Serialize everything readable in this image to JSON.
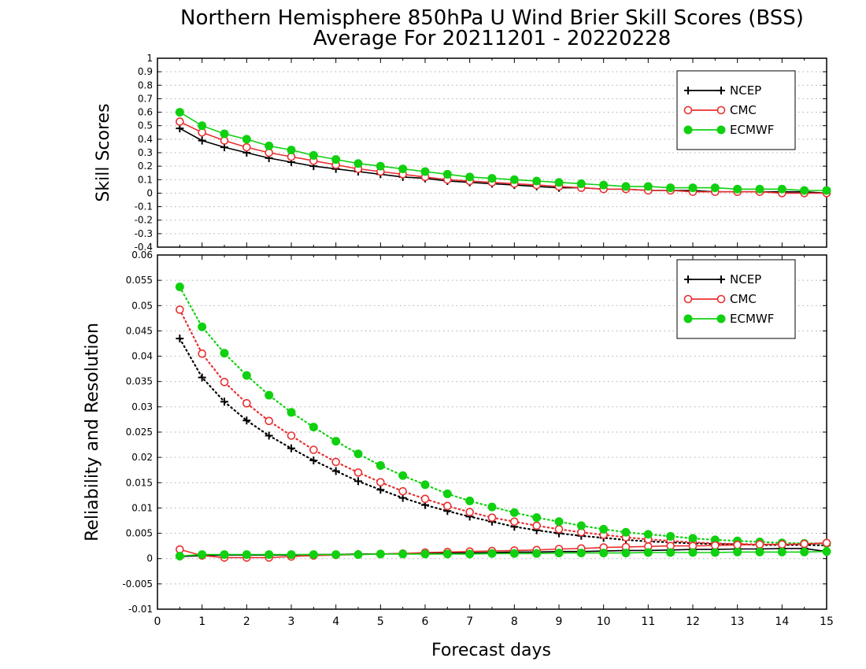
{
  "title_line1": "Northern Hemisphere 850hPa U Wind Brier Skill Scores (BSS)",
  "title_line2": "Average For 20211201 - 20220228",
  "colors": {
    "NCEP": "#000000",
    "CMC": "#e83030",
    "ECMWF": "#10d010",
    "grid": "#aaaaaa"
  },
  "chart_data": [
    {
      "type": "line",
      "ylabel": "Skill Scores",
      "ylim": [
        -0.4,
        1
      ],
      "yticks": [
        "1",
        "0.9",
        "0.8",
        "0.7",
        "0.6",
        "0.5",
        "0.4",
        "0.3",
        "0.2",
        "0.1",
        "0",
        "-0.1",
        "-0.2",
        "-0.3",
        "-0.4"
      ],
      "xlim": [
        0,
        15
      ],
      "grid": true,
      "legend": "top-right",
      "legend_entries": [
        "NCEP",
        "CMC",
        "ECMWF"
      ],
      "x": [
        0.5,
        1,
        1.5,
        2,
        2.5,
        3,
        3.5,
        4,
        4.5,
        5,
        5.5,
        6,
        6.5,
        7,
        7.5,
        8,
        8.5,
        9,
        9.5,
        10,
        10.5,
        11,
        11.5,
        12,
        12.5,
        13,
        13.5,
        14,
        14.5,
        15
      ],
      "series": [
        {
          "name": "NCEP",
          "marker": "plus",
          "style": "solid",
          "values": [
            0.48,
            0.39,
            0.34,
            0.3,
            0.26,
            0.23,
            0.2,
            0.18,
            0.16,
            0.14,
            0.12,
            0.11,
            0.09,
            0.08,
            0.07,
            0.06,
            0.05,
            0.04,
            0.04,
            0.03,
            0.03,
            0.02,
            0.02,
            0.02,
            0.01,
            0.01,
            0.01,
            0.01,
            0.01,
            0.0
          ]
        },
        {
          "name": "CMC",
          "marker": "open-circle",
          "style": "solid",
          "values": [
            0.53,
            0.45,
            0.39,
            0.34,
            0.3,
            0.27,
            0.24,
            0.21,
            0.18,
            0.16,
            0.14,
            0.12,
            0.1,
            0.09,
            0.08,
            0.07,
            0.06,
            0.05,
            0.04,
            0.03,
            0.03,
            0.02,
            0.02,
            0.01,
            0.01,
            0.01,
            0.01,
            0.0,
            0.0,
            0.0
          ]
        },
        {
          "name": "ECMWF",
          "marker": "filled-circle",
          "style": "solid",
          "values": [
            0.6,
            0.5,
            0.44,
            0.4,
            0.35,
            0.32,
            0.28,
            0.25,
            0.22,
            0.2,
            0.18,
            0.16,
            0.14,
            0.12,
            0.11,
            0.1,
            0.09,
            0.08,
            0.07,
            0.06,
            0.05,
            0.05,
            0.04,
            0.04,
            0.04,
            0.03,
            0.03,
            0.03,
            0.02,
            0.02
          ]
        }
      ]
    },
    {
      "type": "line",
      "ylabel": "Reliability and Resolution",
      "xlabel": "Forecast days",
      "ylim": [
        -0.01,
        0.06
      ],
      "yticks": [
        "0.06",
        "0.055",
        "0.05",
        "0.045",
        "0.04",
        "0.035",
        "0.03",
        "0.025",
        "0.02",
        "0.015",
        "0.01",
        "0.005",
        "0",
        "-0.005",
        "-0.01"
      ],
      "xlim": [
        0,
        15
      ],
      "xticks": [
        "0",
        "1",
        "2",
        "3",
        "4",
        "5",
        "6",
        "7",
        "8",
        "9",
        "10",
        "11",
        "12",
        "13",
        "14",
        "15"
      ],
      "grid": true,
      "legend": "top-right",
      "legend_entries": [
        "NCEP",
        "CMC",
        "ECMWF"
      ],
      "x": [
        0.5,
        1,
        1.5,
        2,
        2.5,
        3,
        3.5,
        4,
        4.5,
        5,
        5.5,
        6,
        6.5,
        7,
        7.5,
        8,
        8.5,
        9,
        9.5,
        10,
        10.5,
        11,
        11.5,
        12,
        12.5,
        13,
        13.5,
        14,
        14.5,
        15
      ],
      "series": [
        {
          "name": "NCEP",
          "marker": "plus",
          "style": "dotted",
          "kind": "resolution",
          "values": [
            0.0435,
            0.0358,
            0.031,
            0.0273,
            0.0243,
            0.0218,
            0.0194,
            0.0173,
            0.0153,
            0.0136,
            0.012,
            0.0106,
            0.0094,
            0.0083,
            0.0073,
            0.0063,
            0.0056,
            0.005,
            0.0045,
            0.0041,
            0.0037,
            0.0034,
            0.0032,
            0.003,
            0.0029,
            0.0028,
            0.0027,
            0.0027,
            0.0027,
            0.0026
          ]
        },
        {
          "name": "CMC",
          "marker": "open-circle",
          "style": "dotted",
          "kind": "resolution",
          "values": [
            0.0492,
            0.0405,
            0.0349,
            0.0307,
            0.0272,
            0.0243,
            0.0215,
            0.0191,
            0.017,
            0.0151,
            0.0133,
            0.0118,
            0.0104,
            0.0092,
            0.0081,
            0.0073,
            0.0065,
            0.0058,
            0.0052,
            0.0047,
            0.0042,
            0.0038,
            0.0035,
            0.0032,
            0.003,
            0.0029,
            0.0028,
            0.0028,
            0.0029,
            0.003
          ]
        },
        {
          "name": "ECMWF",
          "marker": "filled-circle",
          "style": "dotted",
          "kind": "resolution",
          "values": [
            0.0537,
            0.0458,
            0.0406,
            0.0362,
            0.0323,
            0.0289,
            0.026,
            0.0232,
            0.0207,
            0.0184,
            0.0164,
            0.0146,
            0.0128,
            0.0114,
            0.0102,
            0.0091,
            0.0081,
            0.0073,
            0.0065,
            0.0058,
            0.0052,
            0.0048,
            0.0044,
            0.004,
            0.0037,
            0.0035,
            0.0033,
            0.0031,
            0.003,
            0.003
          ]
        },
        {
          "name": "NCEP",
          "marker": "plus",
          "style": "solid",
          "kind": "reliability",
          "values": [
            0.0004,
            0.0006,
            0.0007,
            0.0007,
            0.0007,
            0.0007,
            0.0008,
            0.0008,
            0.0009,
            0.0009,
            0.001,
            0.001,
            0.0011,
            0.0011,
            0.0012,
            0.0013,
            0.0013,
            0.0014,
            0.0014,
            0.0015,
            0.0016,
            0.0016,
            0.0017,
            0.0018,
            0.0018,
            0.0019,
            0.0019,
            0.002,
            0.002,
            0.0014
          ]
        },
        {
          "name": "CMC",
          "marker": "open-circle",
          "style": "solid",
          "kind": "reliability",
          "values": [
            0.0018,
            0.0006,
            0.0002,
            0.0002,
            0.0002,
            0.0004,
            0.0006,
            0.0007,
            0.0008,
            0.0009,
            0.001,
            0.0012,
            0.0013,
            0.0014,
            0.0015,
            0.0016,
            0.0017,
            0.0019,
            0.002,
            0.0022,
            0.0023,
            0.0024,
            0.0025,
            0.0025,
            0.0026,
            0.0027,
            0.0028,
            0.0028,
            0.0029,
            0.0031
          ]
        },
        {
          "name": "ECMWF",
          "marker": "filled-circle",
          "style": "solid",
          "kind": "reliability",
          "values": [
            0.0005,
            0.0008,
            0.0008,
            0.0008,
            0.0008,
            0.0008,
            0.0008,
            0.0008,
            0.0008,
            0.0009,
            0.0009,
            0.0009,
            0.0009,
            0.0009,
            0.001,
            0.001,
            0.001,
            0.0011,
            0.0011,
            0.0011,
            0.0011,
            0.0012,
            0.0012,
            0.0012,
            0.0012,
            0.0013,
            0.0013,
            0.0013,
            0.0013,
            0.0014
          ]
        }
      ]
    }
  ]
}
